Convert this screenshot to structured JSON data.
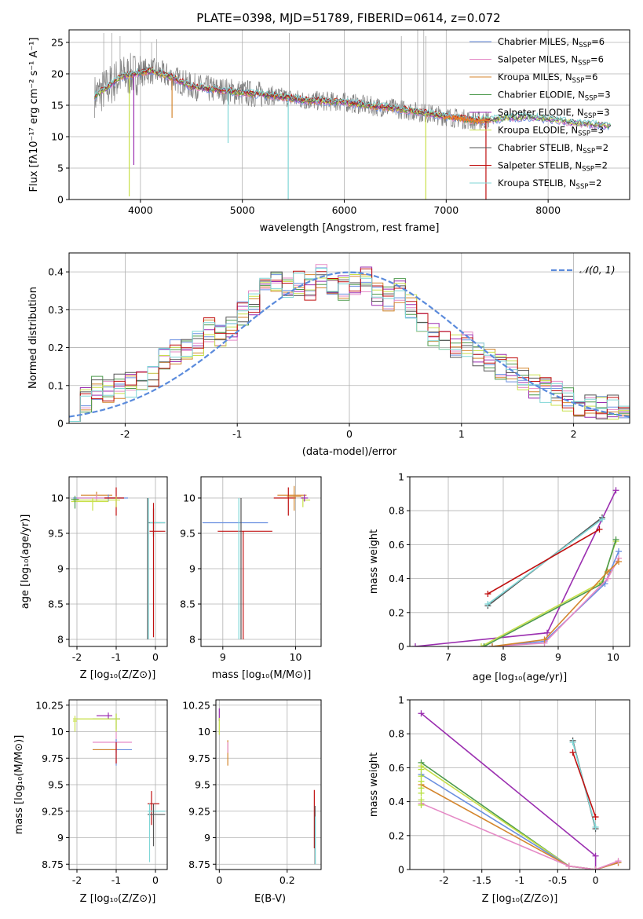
{
  "title": "PLATE=0398, MJD=51789, FIBERID=0614, z=0.072",
  "colors": {
    "chabrier_miles": "#6a8fe0",
    "salpeter_miles": "#e58ac6",
    "kroupa_miles": "#d4862e",
    "chabrier_elodie": "#4d9a4d",
    "salpeter_elodie": "#9b2fb0",
    "kroupa_elodie": "#c8e04a",
    "chabrier_stelib": "#555555",
    "salpeter_stelib": "#c01010",
    "kroupa_stelib": "#7fd6d6",
    "normal": "#5b8bdc",
    "data": "#7f7f7f",
    "orange": "#e87a2a",
    "yellowgreen": "#b6e03c"
  },
  "chart_data": [
    {
      "id": "spectrum",
      "type": "line",
      "xlabel": "wavelength [Angstrom, rest frame]",
      "ylabel": "Flux [fλ10⁻¹⁷ erg cm⁻² s⁻¹ A⁻¹]",
      "xlim": [
        3300,
        8800
      ],
      "ylim": [
        0,
        27
      ],
      "xticks": [
        4000,
        5000,
        6000,
        7000,
        8000
      ],
      "yticks": [
        0,
        5,
        10,
        15,
        20,
        25
      ],
      "legend_position": "top-right",
      "legend": [
        {
          "name": "Chabrier MILES, N",
          "sub": "SSP",
          "suffix": "=6"
        },
        {
          "name": "Salpeter MILES, N",
          "sub": "SSP",
          "suffix": "=6"
        },
        {
          "name": "Kroupa MILES, N",
          "sub": "SSP",
          "suffix": "=6"
        },
        {
          "name": "Chabrier ELODIE, N",
          "sub": "SSP",
          "suffix": "=3"
        },
        {
          "name": "Salpeter ELODIE, N",
          "sub": "SSP",
          "suffix": "=3"
        },
        {
          "name": "Kroupa ELODIE, N",
          "sub": "SSP",
          "suffix": "=3"
        },
        {
          "name": "Chabrier STELIB, N",
          "sub": "SSP",
          "suffix": "=2"
        },
        {
          "name": "Salpeter STELIB, N",
          "sub": "SSP",
          "suffix": "=2"
        },
        {
          "name": "Kroupa STELIB, N",
          "sub": "SSP",
          "suffix": "=2"
        }
      ],
      "continuum": [
        [
          3550,
          16.5
        ],
        [
          3650,
          17.5
        ],
        [
          3800,
          19.5
        ],
        [
          3950,
          20
        ],
        [
          4100,
          20.5
        ],
        [
          4300,
          19.5
        ],
        [
          4500,
          18
        ],
        [
          4700,
          17.5
        ],
        [
          5000,
          17
        ],
        [
          5300,
          16.5
        ],
        [
          5600,
          15.8
        ],
        [
          6000,
          15.5
        ],
        [
          6300,
          14.8
        ],
        [
          6500,
          14.5
        ],
        [
          6700,
          14
        ],
        [
          7000,
          13.2
        ],
        [
          7300,
          12.5
        ],
        [
          7500,
          12.8
        ],
        [
          7800,
          13.2
        ],
        [
          8100,
          12.6
        ],
        [
          8300,
          12.1
        ],
        [
          8600,
          11.8
        ]
      ],
      "absorption_lines": [
        [
          3890,
          0.5
        ],
        [
          3935,
          5.5
        ],
        [
          4310,
          13
        ],
        [
          4860,
          9
        ],
        [
          5450,
          0
        ],
        [
          6800,
          0
        ],
        [
          7390,
          0
        ]
      ]
    },
    {
      "id": "residuals",
      "type": "step",
      "xlabel": "(data-model)/error",
      "ylabel": "Normed distribution",
      "xlim": [
        -2.5,
        2.5
      ],
      "ylim": [
        0,
        0.45
      ],
      "xticks": [
        -2,
        -1,
        0,
        1,
        2
      ],
      "yticks": [
        0.0,
        0.1,
        0.2,
        0.3,
        0.4
      ],
      "legend": [
        {
          "name": "𝒩(0, 1)"
        }
      ],
      "legend_position": "top-right",
      "bin_edges": [
        -2.5,
        -2.4,
        -2.3,
        -2.2,
        -2.1,
        -2.0,
        -1.9,
        -1.8,
        -1.7,
        -1.6,
        -1.5,
        -1.4,
        -1.3,
        -1.2,
        -1.1,
        -1.0,
        -0.9,
        -0.8,
        -0.7,
        -0.6,
        -0.5,
        -0.4,
        -0.3,
        -0.2,
        -0.1,
        0.0,
        0.1,
        0.2,
        0.3,
        0.4,
        0.5,
        0.6,
        0.7,
        0.8,
        0.9,
        1.0,
        1.1,
        1.2,
        1.3,
        1.4,
        1.5,
        1.6,
        1.7,
        1.8,
        1.9,
        2.0,
        2.1,
        2.2,
        2.3,
        2.4,
        2.5
      ],
      "hist_base": [
        0.04,
        0.06,
        0.09,
        0.08,
        0.1,
        0.1,
        0.12,
        0.13,
        0.17,
        0.19,
        0.2,
        0.21,
        0.25,
        0.23,
        0.25,
        0.29,
        0.32,
        0.35,
        0.38,
        0.36,
        0.37,
        0.36,
        0.39,
        0.37,
        0.36,
        0.37,
        0.38,
        0.34,
        0.33,
        0.35,
        0.31,
        0.27,
        0.24,
        0.22,
        0.2,
        0.21,
        0.18,
        0.17,
        0.15,
        0.14,
        0.12,
        0.1,
        0.09,
        0.08,
        0.06,
        0.05,
        0.05,
        0.04,
        0.04,
        0.03
      ]
    },
    {
      "id": "age_vs_Z",
      "type": "scatter",
      "xlabel": "Z [log₁₀(Z/Z⊙)]",
      "ylabel": "age  [log₁₀(age/yr)]",
      "xlim": [
        -2.2,
        0.3
      ],
      "ylim": [
        7.9,
        10.3
      ],
      "xticks": [
        -2,
        -1,
        0
      ],
      "yticks": [
        8.0,
        8.5,
        9.0,
        9.5,
        10.0
      ]
    },
    {
      "id": "age_vs_mass",
      "type": "scatter",
      "xlabel": "mass [log₁₀(M/M⊙)]",
      "xlim": [
        8.7,
        10.35
      ],
      "ylim": [
        7.9,
        10.3
      ],
      "xticks": [
        9,
        10
      ],
      "yticks": [
        8.0,
        8.5,
        9.0,
        9.5,
        10.0
      ]
    },
    {
      "id": "weight_vs_age",
      "type": "line",
      "xlabel": "age  [log₁₀(age/yr)]",
      "ylabel": "mass weight",
      "xlim": [
        6.3,
        10.3
      ],
      "ylim": [
        0,
        1.0
      ],
      "xticks": [
        7,
        8,
        9,
        10
      ],
      "yticks": [
        0.0,
        0.2,
        0.4,
        0.6,
        0.8,
        1.0
      ]
    },
    {
      "id": "mass_vs_Z",
      "type": "scatter",
      "xlabel": "Z [log₁₀(Z/Z⊙)]",
      "ylabel": "mass [log₁₀(M/M⊙)]",
      "xlim": [
        -2.2,
        0.3
      ],
      "ylim": [
        8.7,
        10.3
      ],
      "xticks": [
        -2,
        -1,
        0
      ],
      "yticks": [
        8.75,
        9.0,
        9.25,
        9.5,
        9.75,
        10.0,
        10.25
      ]
    },
    {
      "id": "mass_vs_ebv",
      "type": "scatter",
      "xlabel": "E(B-V)",
      "xlim": [
        -0.01,
        0.3
      ],
      "ylim": [
        8.7,
        10.3
      ],
      "xticks": [
        0.0,
        0.2
      ],
      "yticks": [
        8.75,
        9.0,
        9.25,
        9.5,
        9.75,
        10.0,
        10.25
      ]
    },
    {
      "id": "weight_vs_Z",
      "type": "line",
      "xlabel": "Z [log₁₀(Z/Z⊙)]",
      "ylabel": "mass weight",
      "xlim": [
        -2.45,
        0.45
      ],
      "ylim": [
        0,
        1.0
      ],
      "xticks": [
        -2.0,
        -1.5,
        -1.0,
        -0.5,
        0.0
      ],
      "yticks": [
        0.0,
        0.2,
        0.4,
        0.6,
        0.8,
        1.0
      ]
    }
  ]
}
